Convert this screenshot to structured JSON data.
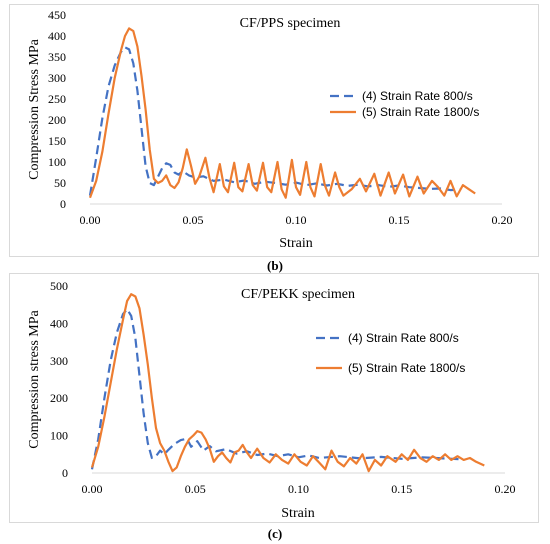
{
  "chart_data": [
    {
      "type": "line",
      "panel": "b",
      "title": "CF/PPS specimen",
      "xlabel": "Strain",
      "ylabel": "Compression Stress MPa",
      "xlim": [
        0,
        0.2
      ],
      "ylim": [
        0,
        450
      ],
      "xticks": [
        "0.00",
        "0.05",
        "0.10",
        "0.15",
        "0.20"
      ],
      "yticks": [
        "0",
        "50",
        "100",
        "150",
        "200",
        "250",
        "300",
        "350",
        "400",
        "450"
      ],
      "grid": false,
      "legend_position": "right",
      "series": [
        {
          "name": "(4) Strain Rate 800/s",
          "color": "#4472C4",
          "dash": "dashed",
          "points": [
            [
              0.0,
              20
            ],
            [
              0.003,
              110
            ],
            [
              0.006,
              205
            ],
            [
              0.009,
              280
            ],
            [
              0.012,
              330
            ],
            [
              0.015,
              362
            ],
            [
              0.017,
              373
            ],
            [
              0.019,
              368
            ],
            [
              0.021,
              335
            ],
            [
              0.023,
              270
            ],
            [
              0.025,
              180
            ],
            [
              0.027,
              90
            ],
            [
              0.029,
              50
            ],
            [
              0.031,
              45
            ],
            [
              0.033,
              65
            ],
            [
              0.035,
              85
            ],
            [
              0.037,
              97
            ],
            [
              0.039,
              93
            ],
            [
              0.041,
              75
            ],
            [
              0.043,
              70
            ],
            [
              0.045,
              78
            ],
            [
              0.048,
              68
            ],
            [
              0.051,
              63
            ],
            [
              0.055,
              66
            ],
            [
              0.06,
              55
            ],
            [
              0.065,
              58
            ],
            [
              0.07,
              52
            ],
            [
              0.075,
              56
            ],
            [
              0.08,
              48
            ],
            [
              0.085,
              53
            ],
            [
              0.09,
              50
            ],
            [
              0.095,
              46
            ],
            [
              0.1,
              51
            ],
            [
              0.105,
              45
            ],
            [
              0.11,
              49
            ],
            [
              0.115,
              44
            ],
            [
              0.12,
              48
            ],
            [
              0.125,
              43
            ],
            [
              0.13,
              46
            ],
            [
              0.135,
              42
            ],
            [
              0.14,
              45
            ],
            [
              0.145,
              41
            ],
            [
              0.15,
              44
            ],
            [
              0.155,
              40
            ],
            [
              0.16,
              38
            ],
            [
              0.165,
              36
            ],
            [
              0.17,
              37
            ],
            [
              0.175,
              33
            ],
            [
              0.18,
              35
            ]
          ]
        },
        {
          "name": "(5) Strain Rate 1800/s",
          "color": "#ED7D31",
          "dash": "solid",
          "points": [
            [
              0.0,
              15
            ],
            [
              0.003,
              55
            ],
            [
              0.006,
              125
            ],
            [
              0.009,
              215
            ],
            [
              0.012,
              300
            ],
            [
              0.015,
              365
            ],
            [
              0.017,
              400
            ],
            [
              0.019,
              418
            ],
            [
              0.021,
              412
            ],
            [
              0.023,
              375
            ],
            [
              0.025,
              305
            ],
            [
              0.027,
              225
            ],
            [
              0.029,
              130
            ],
            [
              0.031,
              60
            ],
            [
              0.033,
              50
            ],
            [
              0.035,
              55
            ],
            [
              0.037,
              68
            ],
            [
              0.039,
              45
            ],
            [
              0.041,
              38
            ],
            [
              0.043,
              52
            ],
            [
              0.045,
              85
            ],
            [
              0.047,
              130
            ],
            [
              0.049,
              92
            ],
            [
              0.051,
              48
            ],
            [
              0.053,
              65
            ],
            [
              0.056,
              110
            ],
            [
              0.058,
              62
            ],
            [
              0.06,
              28
            ],
            [
              0.063,
              95
            ],
            [
              0.065,
              42
            ],
            [
              0.067,
              28
            ],
            [
              0.07,
              98
            ],
            [
              0.072,
              40
            ],
            [
              0.074,
              30
            ],
            [
              0.077,
              95
            ],
            [
              0.079,
              45
            ],
            [
              0.081,
              32
            ],
            [
              0.084,
              98
            ],
            [
              0.086,
              40
            ],
            [
              0.088,
              28
            ],
            [
              0.091,
              100
            ],
            [
              0.093,
              35
            ],
            [
              0.095,
              15
            ],
            [
              0.098,
              105
            ],
            [
              0.1,
              40
            ],
            [
              0.102,
              22
            ],
            [
              0.105,
              100
            ],
            [
              0.107,
              40
            ],
            [
              0.109,
              18
            ],
            [
              0.112,
              95
            ],
            [
              0.114,
              45
            ],
            [
              0.116,
              20
            ],
            [
              0.119,
              75
            ],
            [
              0.121,
              40
            ],
            [
              0.123,
              20
            ],
            [
              0.127,
              35
            ],
            [
              0.131,
              60
            ],
            [
              0.134,
              30
            ],
            [
              0.138,
              72
            ],
            [
              0.141,
              20
            ],
            [
              0.145,
              75
            ],
            [
              0.148,
              25
            ],
            [
              0.152,
              70
            ],
            [
              0.155,
              18
            ],
            [
              0.159,
              65
            ],
            [
              0.162,
              25
            ],
            [
              0.166,
              55
            ],
            [
              0.169,
              40
            ],
            [
              0.172,
              20
            ],
            [
              0.175,
              55
            ],
            [
              0.178,
              18
            ],
            [
              0.181,
              45
            ],
            [
              0.184,
              35
            ],
            [
              0.187,
              25
            ]
          ]
        }
      ]
    },
    {
      "type": "line",
      "panel": "c",
      "title": "CF/PEKK specimen",
      "xlabel": "Strain",
      "ylabel": "Compression stress MPa",
      "xlim": [
        0,
        0.2
      ],
      "ylim": [
        0,
        500
      ],
      "xticks": [
        "0.00",
        "0.05",
        "0.10",
        "0.15",
        "0.20"
      ],
      "yticks": [
        "0",
        "100",
        "200",
        "300",
        "400",
        "500"
      ],
      "grid": false,
      "legend_position": "right",
      "series": [
        {
          "name": "(4) Strain Rate 800/s",
          "color": "#4472C4",
          "dash": "dashed",
          "points": [
            [
              0.0,
              10
            ],
            [
              0.003,
              90
            ],
            [
              0.006,
              200
            ],
            [
              0.009,
              300
            ],
            [
              0.012,
              375
            ],
            [
              0.015,
              425
            ],
            [
              0.017,
              438
            ],
            [
              0.019,
              420
            ],
            [
              0.021,
              360
            ],
            [
              0.023,
              260
            ],
            [
              0.025,
              160
            ],
            [
              0.027,
              80
            ],
            [
              0.029,
              40
            ],
            [
              0.031,
              45
            ],
            [
              0.033,
              60
            ],
            [
              0.035,
              50
            ],
            [
              0.037,
              62
            ],
            [
              0.04,
              78
            ],
            [
              0.043,
              88
            ],
            [
              0.046,
              92
            ],
            [
              0.048,
              70
            ],
            [
              0.051,
              85
            ],
            [
              0.054,
              60
            ],
            [
              0.057,
              72
            ],
            [
              0.06,
              58
            ],
            [
              0.065,
              64
            ],
            [
              0.07,
              52
            ],
            [
              0.075,
              58
            ],
            [
              0.08,
              48
            ],
            [
              0.085,
              52
            ],
            [
              0.09,
              45
            ],
            [
              0.095,
              50
            ],
            [
              0.1,
              42
            ],
            [
              0.105,
              47
            ],
            [
              0.11,
              40
            ],
            [
              0.12,
              45
            ],
            [
              0.13,
              39
            ],
            [
              0.14,
              43
            ],
            [
              0.15,
              38
            ],
            [
              0.16,
              42
            ],
            [
              0.17,
              39
            ],
            [
              0.178,
              37
            ]
          ]
        },
        {
          "name": "(5) Strain Rate 1800/s",
          "color": "#ED7D31",
          "dash": "solid",
          "points": [
            [
              0.0,
              15
            ],
            [
              0.003,
              70
            ],
            [
              0.006,
              150
            ],
            [
              0.009,
              240
            ],
            [
              0.012,
              330
            ],
            [
              0.015,
              410
            ],
            [
              0.017,
              460
            ],
            [
              0.019,
              478
            ],
            [
              0.021,
              472
            ],
            [
              0.023,
              440
            ],
            [
              0.025,
              370
            ],
            [
              0.027,
              290
            ],
            [
              0.029,
              200
            ],
            [
              0.031,
              120
            ],
            [
              0.033,
              80
            ],
            [
              0.035,
              60
            ],
            [
              0.037,
              30
            ],
            [
              0.039,
              5
            ],
            [
              0.041,
              15
            ],
            [
              0.043,
              45
            ],
            [
              0.045,
              70
            ],
            [
              0.047,
              90
            ],
            [
              0.049,
              100
            ],
            [
              0.051,
              112
            ],
            [
              0.053,
              108
            ],
            [
              0.055,
              90
            ],
            [
              0.057,
              65
            ],
            [
              0.059,
              30
            ],
            [
              0.061,
              45
            ],
            [
              0.063,
              55
            ],
            [
              0.065,
              40
            ],
            [
              0.067,
              28
            ],
            [
              0.069,
              55
            ],
            [
              0.071,
              60
            ],
            [
              0.073,
              75
            ],
            [
              0.075,
              55
            ],
            [
              0.077,
              40
            ],
            [
              0.08,
              65
            ],
            [
              0.083,
              40
            ],
            [
              0.086,
              28
            ],
            [
              0.089,
              50
            ],
            [
              0.092,
              35
            ],
            [
              0.095,
              25
            ],
            [
              0.098,
              50
            ],
            [
              0.101,
              30
            ],
            [
              0.104,
              20
            ],
            [
              0.107,
              45
            ],
            [
              0.11,
              28
            ],
            [
              0.113,
              10
            ],
            [
              0.116,
              60
            ],
            [
              0.119,
              30
            ],
            [
              0.122,
              18
            ],
            [
              0.125,
              40
            ],
            [
              0.128,
              25
            ],
            [
              0.131,
              50
            ],
            [
              0.134,
              5
            ],
            [
              0.137,
              35
            ],
            [
              0.14,
              20
            ],
            [
              0.143,
              45
            ],
            [
              0.147,
              30
            ],
            [
              0.15,
              50
            ],
            [
              0.153,
              35
            ],
            [
              0.156,
              62
            ],
            [
              0.159,
              40
            ],
            [
              0.162,
              30
            ],
            [
              0.165,
              45
            ],
            [
              0.168,
              35
            ],
            [
              0.171,
              50
            ],
            [
              0.174,
              35
            ],
            [
              0.177,
              45
            ],
            [
              0.18,
              35
            ],
            [
              0.183,
              40
            ],
            [
              0.186,
              30
            ],
            [
              0.19,
              20
            ]
          ]
        }
      ]
    }
  ],
  "captions": {
    "b": "(b)",
    "c": "(c)"
  }
}
